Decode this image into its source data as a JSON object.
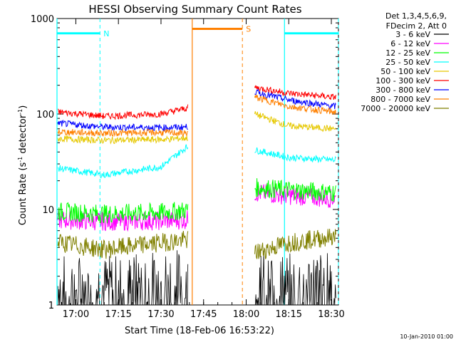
{
  "chart_data": {
    "type": "line",
    "title": "HESSI Observing Summary Count Rates",
    "xlabel": "Start Time (18-Feb-06 16:53:22)",
    "ylabel_main": "Count Rate (s",
    "ylabel_sup1": "-1",
    "ylabel_mid": " detector",
    "ylabel_sup2": "-1",
    "ylabel_end": ")",
    "y_scale": "log",
    "ylim": [
      1,
      1000
    ],
    "xlim": [
      "16:53:22",
      "18:32:30"
    ],
    "x_ticks": [
      "17:00",
      "17:15",
      "17:30",
      "17:45",
      "18:00",
      "18:15",
      "18:30"
    ],
    "y_ticks": [
      "1",
      "10",
      "100",
      "1000"
    ],
    "legend_header": [
      "Det 1,3,4,5,6,9,",
      "FDecim 2, Att 0"
    ],
    "legend_placement": "right",
    "footer_date": "10-Jan-2010 01:00",
    "series": [
      {
        "name": "3 - 6 keV",
        "color": "#000000",
        "x": [
          "16:54",
          "17:10",
          "17:30",
          "17:39",
          "18:03",
          "18:15",
          "18:31"
        ],
        "values": [
          1.6,
          1.5,
          1.7,
          1.8,
          1.8,
          1.6,
          1.7
        ]
      },
      {
        "name": "6 - 12 keV",
        "color": "#ff00ff",
        "x": [
          "16:54",
          "17:10",
          "17:30",
          "17:39",
          "18:03",
          "18:15",
          "18:31"
        ],
        "values": [
          7.8,
          7.5,
          7.6,
          7.8,
          15,
          14,
          13
        ]
      },
      {
        "name": "12 - 25 keV",
        "color": "#00ff00",
        "x": [
          "16:54",
          "17:10",
          "17:30",
          "17:39",
          "18:03",
          "18:15",
          "18:31"
        ],
        "values": [
          9.5,
          9.0,
          9.3,
          9.8,
          17,
          16,
          15
        ]
      },
      {
        "name": "25 - 50 keV",
        "color": "#00ffff",
        "x": [
          "16:54",
          "17:10",
          "17:30",
          "17:39",
          "18:03",
          "18:15",
          "18:31"
        ],
        "values": [
          27,
          23,
          28,
          45,
          42,
          35,
          33
        ]
      },
      {
        "name": "50 - 100 keV",
        "color": "#e6c800",
        "x": [
          "16:54",
          "17:10",
          "17:30",
          "17:39",
          "18:03",
          "18:15",
          "18:31"
        ],
        "values": [
          55,
          53,
          54,
          56,
          100,
          75,
          70
        ]
      },
      {
        "name": "100 - 300 keV",
        "color": "#ff0000",
        "x": [
          "16:54",
          "17:10",
          "17:30",
          "17:39",
          "18:03",
          "18:15",
          "18:31"
        ],
        "values": [
          105,
          95,
          100,
          115,
          190,
          165,
          150
        ]
      },
      {
        "name": "300 - 800 keV",
        "color": "#0000ff",
        "x": [
          "16:54",
          "17:10",
          "17:30",
          "17:39",
          "18:03",
          "18:15",
          "18:31"
        ],
        "values": [
          80,
          73,
          72,
          73,
          170,
          140,
          120
        ]
      },
      {
        "name": "800 - 7000 keV",
        "color": "#ff8000",
        "x": [
          "16:54",
          "17:10",
          "17:30",
          "17:39",
          "18:03",
          "18:15",
          "18:31"
        ],
        "values": [
          65,
          63,
          64,
          63,
          150,
          120,
          105
        ]
      },
      {
        "name": "7000 - 20000 keV",
        "color": "#808000",
        "x": [
          "16:54",
          "17:10",
          "17:30",
          "17:39",
          "18:03",
          "18:15",
          "18:31"
        ],
        "values": [
          4.5,
          3.8,
          4.5,
          4.8,
          3.5,
          4.5,
          5.2
        ]
      }
    ],
    "annotations": [
      {
        "label": "N",
        "color": "#00ffff",
        "start": "16:53:22",
        "end": "17:08:30",
        "level": 700
      },
      {
        "label": "",
        "color": "#00ffff",
        "start": "18:13:30",
        "end": "18:32:30",
        "level": 700
      },
      {
        "label": "S",
        "color": "#ff8000",
        "start": "17:41:00",
        "end": "17:58:40",
        "level": 780
      }
    ]
  }
}
